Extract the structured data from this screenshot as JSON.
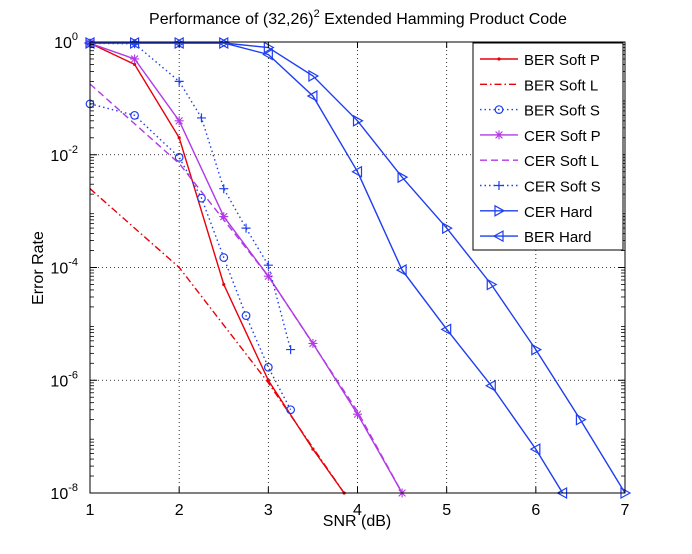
{
  "chart_data": {
    "type": "line",
    "title_prefix": "Performance of (32,26)",
    "title_sup": "2",
    "title_suffix": " Extended Hamming Product Code",
    "xlabel": "SNR (dB)",
    "ylabel": "Error Rate",
    "xlim": [
      1,
      7
    ],
    "ylim_log10": [
      -8,
      0
    ],
    "xticks": [
      1,
      2,
      3,
      4,
      5,
      6,
      7
    ],
    "x_tick_labels": [
      "1",
      "2",
      "3",
      "4",
      "5",
      "6",
      "7"
    ],
    "yticks_log10": [
      0,
      -2,
      -4,
      -6,
      -8
    ],
    "y_tick_bases": [
      "10",
      "10",
      "10",
      "10",
      "10"
    ],
    "y_tick_exps": [
      "0",
      "-2",
      "-4",
      "-6",
      "-8"
    ],
    "grid": true,
    "legend_position": "top-right",
    "colors": {
      "red": "#e8000b",
      "blue": "#1f3ef0",
      "magenta": "#b23ae6"
    },
    "series": [
      {
        "name": "BER Soft P",
        "color": "red",
        "dash": "solid",
        "marker": "point",
        "x": [
          1,
          1.5,
          2,
          2.5,
          3,
          3.5,
          3.85
        ],
        "y": [
          0.95,
          0.4,
          0.02,
          5e-05,
          1e-06,
          6e-08,
          1e-08
        ]
      },
      {
        "name": "BER Soft L",
        "color": "red",
        "dash": "dashdot",
        "marker": "none",
        "x": [
          1,
          2,
          3,
          3.85
        ],
        "y": [
          0.0025,
          0.0001,
          9e-07,
          1e-08
        ]
      },
      {
        "name": "BER Soft S",
        "color": "blue",
        "dash": "dotted",
        "marker": "circle",
        "x": [
          1,
          1.5,
          2,
          2.25,
          2.5,
          2.75,
          3,
          3.25
        ],
        "y": [
          0.08,
          0.05,
          0.009,
          0.0017,
          0.00015,
          1.4e-05,
          1.7e-06,
          3e-07
        ]
      },
      {
        "name": "CER Soft P",
        "color": "magenta",
        "dash": "solid",
        "marker": "star",
        "x": [
          1,
          1.5,
          2,
          2.5,
          3,
          3.5,
          4,
          4.5
        ],
        "y": [
          0.95,
          0.5,
          0.04,
          0.0008,
          7e-05,
          4.5e-06,
          2.5e-07,
          1e-08
        ]
      },
      {
        "name": "CER Soft L",
        "color": "magenta",
        "dash": "dashed",
        "marker": "none",
        "x": [
          1,
          2,
          3,
          4,
          4.5
        ],
        "y": [
          0.18,
          0.007,
          7e-05,
          2.8e-07,
          1e-08
        ]
      },
      {
        "name": "CER Soft S",
        "color": "blue",
        "dash": "dotted",
        "marker": "plus",
        "x": [
          1,
          1.5,
          2,
          2.25,
          2.5,
          2.75,
          3,
          3.25
        ],
        "y": [
          0.95,
          0.93,
          0.2,
          0.045,
          0.0025,
          0.0005,
          0.00011,
          3.5e-06
        ]
      },
      {
        "name": "CER Hard",
        "color": "blue",
        "dash": "solid",
        "marker": "triangle-right",
        "x": [
          1,
          1.5,
          2,
          2.5,
          3,
          3.5,
          4,
          4.5,
          5,
          5.5,
          6,
          6.5,
          7
        ],
        "y": [
          0.96,
          0.96,
          0.96,
          0.96,
          0.8,
          0.25,
          0.04,
          0.004,
          0.0005,
          5e-05,
          3.5e-06,
          2e-07,
          1e-08
        ]
      },
      {
        "name": "BER Hard",
        "color": "blue",
        "dash": "solid",
        "marker": "triangle-left",
        "x": [
          1,
          1.5,
          2,
          2.5,
          3,
          3.5,
          4,
          4.5,
          5,
          5.5,
          6,
          6.3
        ],
        "y": [
          0.96,
          0.96,
          0.96,
          0.96,
          0.6,
          0.11,
          0.005,
          9e-05,
          8e-06,
          8e-07,
          6e-08,
          1e-08
        ]
      }
    ]
  }
}
